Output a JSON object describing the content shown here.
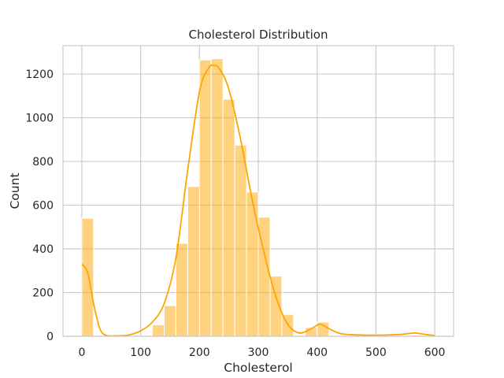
{
  "chart_data": {
    "type": "bar",
    "title": "Cholesterol Distribution",
    "xlabel": "Cholesterol",
    "ylabel": "Count",
    "xlim": [
      -32,
      632
    ],
    "ylim": [
      0,
      1330
    ],
    "x_ticks": [
      0,
      100,
      200,
      300,
      400,
      500,
      600
    ],
    "y_ticks": [
      0,
      200,
      400,
      600,
      800,
      1000,
      1200
    ],
    "grid": true,
    "bin_width": 20,
    "bar_color": "#FFA500",
    "bar_opacity": 0.5,
    "kde_color": "#FFA500",
    "bins": [
      {
        "start": 0,
        "count": 540
      },
      {
        "start": 120,
        "count": 52
      },
      {
        "start": 140,
        "count": 140
      },
      {
        "start": 160,
        "count": 425
      },
      {
        "start": 180,
        "count": 685
      },
      {
        "start": 200,
        "count": 1265
      },
      {
        "start": 220,
        "count": 1270
      },
      {
        "start": 240,
        "count": 1085
      },
      {
        "start": 260,
        "count": 875
      },
      {
        "start": 280,
        "count": 660
      },
      {
        "start": 300,
        "count": 545
      },
      {
        "start": 320,
        "count": 275
      },
      {
        "start": 340,
        "count": 100
      },
      {
        "start": 380,
        "count": 40
      },
      {
        "start": 400,
        "count": 65
      },
      {
        "start": 560,
        "count": 5
      }
    ],
    "kde": {
      "x": [
        0,
        10,
        20,
        30,
        40,
        60,
        80,
        100,
        120,
        140,
        160,
        180,
        200,
        215,
        225,
        235,
        250,
        270,
        290,
        310,
        330,
        350,
        370,
        390,
        405,
        420,
        440,
        470,
        500,
        540,
        565,
        580,
        600
      ],
      "y": [
        330,
        290,
        150,
        40,
        5,
        2,
        6,
        25,
        65,
        150,
        360,
        760,
        1120,
        1225,
        1240,
        1220,
        1130,
        900,
        620,
        380,
        180,
        55,
        15,
        35,
        55,
        35,
        12,
        6,
        5,
        8,
        15,
        10,
        3
      ]
    }
  }
}
